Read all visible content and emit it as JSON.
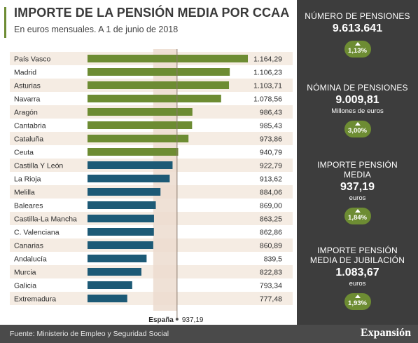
{
  "header": {
    "title": "IMPORTE DE LA PENSIÓN MEDIA POR CCAA",
    "subtitle": "En euros mensuales. A 1 de junio de 2018"
  },
  "chart_data": {
    "type": "bar",
    "orientation": "horizontal",
    "title": "IMPORTE DE LA PENSIÓN MEDIA POR CCAA",
    "subtitle": "En euros mensuales. A 1 de junio de 2018",
    "categories": [
      "País Vasco",
      "Madrid",
      "Asturias",
      "Navarra",
      "Aragón",
      "Cantabria",
      "Cataluña",
      "Ceuta",
      "Castilla Y León",
      "La Rioja",
      "Melilla",
      "Baleares",
      "Castilla-La Mancha",
      "C. Valenciana",
      "Canarias",
      "Andalucía",
      "Murcia",
      "Galicia",
      "Extremadura"
    ],
    "values": [
      1164.29,
      1106.23,
      1103.71,
      1078.56,
      986.43,
      985.43,
      973.86,
      940.79,
      922.79,
      913.62,
      884.06,
      869.0,
      863.25,
      862.86,
      860.89,
      839.5,
      822.83,
      793.34,
      777.48
    ],
    "value_labels": [
      "1.164,29",
      "1.106,23",
      "1.103,71",
      "1.078,56",
      "986,43",
      "985,43",
      "973,86",
      "940,79",
      "922,79",
      "913,62",
      "884,06",
      "869,00",
      "863,25",
      "862,86",
      "860,89",
      "839,5",
      "822,83",
      "793,34",
      "777,48"
    ],
    "reference": {
      "label": "España",
      "value": 937.19,
      "value_label": "937,19"
    },
    "colors": {
      "above": "#6d8c33",
      "below": "#1d5a76",
      "reference_band": "#ecdccf",
      "row_alt": "#f5ece3"
    },
    "xlim": [
      0,
      1200
    ]
  },
  "sidebar": {
    "stats": [
      {
        "label": "NÚMERO DE PENSIONES",
        "value": "9.613.641",
        "unit": "",
        "change": "1,13%"
      },
      {
        "label": "NÓMINA DE PENSIONES",
        "value": "9.009,81",
        "unit": "Millones de euros",
        "change": "3,00%"
      },
      {
        "label": "IMPORTE PENSIÓN MEDIA",
        "value": "937,19",
        "unit": "euros",
        "change": "1,84%"
      },
      {
        "label": "IMPORTE PENSIÓN MEDIA DE JUBILACIÓN",
        "value": "1.083,67",
        "unit": "euros",
        "change": "1,93%"
      }
    ]
  },
  "footer": {
    "source": "Fuente: Ministerio de Empleo y Seguridad Social",
    "brand": "Expansión"
  }
}
